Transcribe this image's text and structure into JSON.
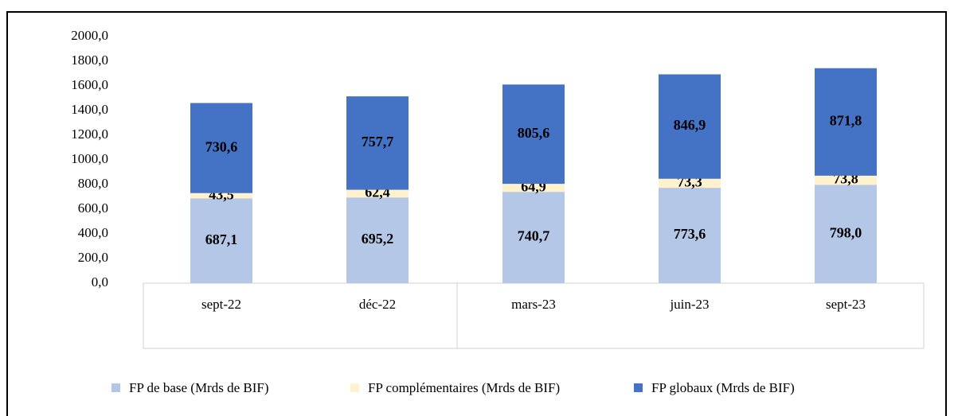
{
  "chart_data": {
    "type": "stacked_bar",
    "categories": [
      "sept-22",
      "déc-22",
      "mars-23",
      "juin-23",
      "sept-23"
    ],
    "series": [
      {
        "name": "FP de base (Mrds de BIF)",
        "color": "#b4c7e7",
        "values": [
          687.1,
          695.2,
          740.7,
          773.6,
          798.0
        ],
        "value_labels": [
          "687,1",
          "695,2",
          "740,7",
          "773,6",
          "798,0"
        ]
      },
      {
        "name": "FP complémentaires (Mrds de BIF)",
        "color": "#fff2cc",
        "values": [
          43.5,
          62.4,
          64.9,
          73.3,
          73.8
        ],
        "value_labels": [
          "43,5",
          "62,4",
          "64,9",
          "73,3",
          "73,8"
        ]
      },
      {
        "name": "FP globaux (Mrds de BIF)",
        "color": "#4472c4",
        "values": [
          730.6,
          757.7,
          805.6,
          846.9,
          871.8
        ],
        "value_labels": [
          "730,6",
          "757,7",
          "805,6",
          "846,9",
          "871,8"
        ]
      }
    ],
    "ylim": [
      0,
      2000
    ],
    "yticks": [
      {
        "value": 0,
        "label": "0,0"
      },
      {
        "value": 200,
        "label": "200,0"
      },
      {
        "value": 400,
        "label": "400,0"
      },
      {
        "value": 600,
        "label": "600,0"
      },
      {
        "value": 800,
        "label": "800,0"
      },
      {
        "value": 1000,
        "label": "1000,0"
      },
      {
        "value": 1200,
        "label": "1200,0"
      },
      {
        "value": 1400,
        "label": "1400,0"
      },
      {
        "value": 1600,
        "label": "1600,0"
      },
      {
        "value": 1800,
        "label": "1800,0"
      },
      {
        "value": 2000,
        "label": "2000,0"
      }
    ],
    "legend": "bottom"
  }
}
